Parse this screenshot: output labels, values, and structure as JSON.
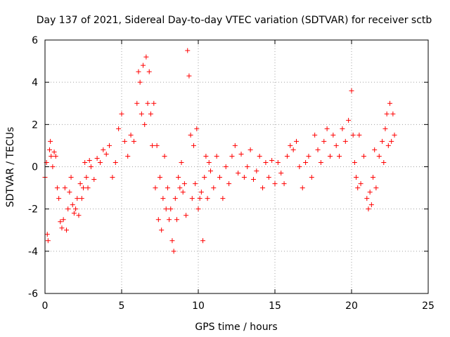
{
  "chart_data": {
    "type": "scatter",
    "title": "Day 137 of 2021, Sidereal Day-to-day VTEC variation (SDTVAR) for receiver sctb",
    "xlabel": "GPS time / hours",
    "ylabel": "SDTVAR / TECUs",
    "xlim": [
      0,
      25
    ],
    "ylim": [
      -6,
      6
    ],
    "xticks": [
      0,
      5,
      10,
      15,
      20,
      25
    ],
    "yticks": [
      -6,
      -4,
      -2,
      0,
      2,
      4,
      6
    ],
    "xtick_labels": [
      "0",
      "5",
      "10",
      "15",
      "20",
      "25"
    ],
    "ytick_labels": [
      "-6",
      "-4",
      "-2",
      "0",
      "2",
      "4",
      "6"
    ],
    "grid": true,
    "marker": "+",
    "series": [
      {
        "name": "SDTVAR",
        "color": "#ff0000",
        "x": [
          0.0,
          0.1,
          0.15,
          0.2,
          0.3,
          0.35,
          0.4,
          0.5,
          0.6,
          0.7,
          0.8,
          0.9,
          1.0,
          1.1,
          1.2,
          1.3,
          1.4,
          1.5,
          1.6,
          1.7,
          1.8,
          1.9,
          2.0,
          2.1,
          2.2,
          2.3,
          2.4,
          2.5,
          2.6,
          2.7,
          2.8,
          2.9,
          3.0,
          3.2,
          3.4,
          3.6,
          3.8,
          4.0,
          4.2,
          4.4,
          4.6,
          4.8,
          5.0,
          5.2,
          5.4,
          5.6,
          5.8,
          6.0,
          6.1,
          6.2,
          6.3,
          6.4,
          6.5,
          6.6,
          6.7,
          6.8,
          6.9,
          7.0,
          7.1,
          7.2,
          7.3,
          7.4,
          7.5,
          7.6,
          7.7,
          7.8,
          7.9,
          8.0,
          8.1,
          8.2,
          8.3,
          8.4,
          8.5,
          8.6,
          8.7,
          8.8,
          8.9,
          9.0,
          9.1,
          9.2,
          9.3,
          9.4,
          9.5,
          9.6,
          9.7,
          9.8,
          9.9,
          10.0,
          10.1,
          10.2,
          10.3,
          10.4,
          10.5,
          10.6,
          10.7,
          10.8,
          11.0,
          11.2,
          11.4,
          11.6,
          11.8,
          12.0,
          12.2,
          12.4,
          12.6,
          12.8,
          13.0,
          13.2,
          13.4,
          13.6,
          13.8,
          14.0,
          14.2,
          14.4,
          14.6,
          14.8,
          15.0,
          15.2,
          15.4,
          15.6,
          15.8,
          16.0,
          16.2,
          16.4,
          16.6,
          16.8,
          17.0,
          17.2,
          17.4,
          17.6,
          17.8,
          18.0,
          18.2,
          18.4,
          18.6,
          18.8,
          19.0,
          19.2,
          19.4,
          19.6,
          19.8,
          20.0,
          20.1,
          20.2,
          20.3,
          20.4,
          20.5,
          20.6,
          20.8,
          21.0,
          21.1,
          21.2,
          21.3,
          21.4,
          21.5,
          21.6,
          21.8,
          22.0,
          22.1,
          22.2,
          22.3,
          22.4,
          22.5,
          22.6,
          22.7,
          22.8
        ],
        "y": [
          -0.5,
          0.2,
          -3.2,
          -3.5,
          0.8,
          1.2,
          0.5,
          0.0,
          0.7,
          0.5,
          -1.0,
          -1.5,
          -2.6,
          -2.9,
          -2.5,
          -1.0,
          -3.0,
          -2.0,
          -1.2,
          -0.5,
          -1.8,
          -2.2,
          -2.0,
          -1.5,
          -2.3,
          -0.8,
          -1.5,
          -1.0,
          0.2,
          -0.5,
          -1.0,
          0.3,
          0.0,
          -0.6,
          0.4,
          0.2,
          0.8,
          0.6,
          1.0,
          -0.5,
          0.2,
          1.8,
          2.5,
          1.2,
          0.5,
          1.5,
          1.2,
          3.0,
          4.5,
          4.0,
          2.5,
          4.8,
          2.0,
          5.2,
          3.0,
          4.5,
          2.5,
          1.0,
          3.0,
          -1.0,
          1.0,
          -2.5,
          -0.5,
          -3.0,
          -1.5,
          0.5,
          -2.0,
          -1.0,
          -2.5,
          -2.0,
          -3.5,
          -4.0,
          -1.5,
          -2.5,
          -0.5,
          -1.0,
          0.2,
          -1.2,
          -0.8,
          -2.3,
          5.5,
          4.3,
          1.5,
          -1.5,
          1.0,
          -0.8,
          1.8,
          -2.0,
          -1.5,
          -1.2,
          -3.5,
          -0.5,
          0.5,
          -1.5,
          0.2,
          -0.2,
          -1.0,
          0.5,
          -0.5,
          -1.5,
          0.0,
          -0.8,
          0.5,
          1.0,
          -0.3,
          0.6,
          -0.5,
          0.0,
          0.8,
          -0.6,
          -0.2,
          0.5,
          -1.0,
          0.2,
          -0.5,
          0.3,
          -0.8,
          0.2,
          -0.3,
          -0.8,
          0.5,
          1.0,
          0.8,
          1.2,
          0.0,
          -1.0,
          0.2,
          0.5,
          -0.5,
          1.5,
          0.8,
          0.2,
          1.2,
          1.8,
          0.5,
          1.5,
          1.0,
          0.5,
          1.8,
          1.2,
          2.2,
          3.6,
          1.5,
          0.2,
          -0.5,
          -1.0,
          1.5,
          -0.8,
          0.5,
          -1.5,
          -2.0,
          -1.2,
          -1.8,
          -0.5,
          0.8,
          -1.0,
          0.5,
          1.2,
          0.2,
          1.8,
          2.5,
          1.0,
          3.0,
          1.2,
          2.5,
          1.5
        ]
      }
    ]
  }
}
